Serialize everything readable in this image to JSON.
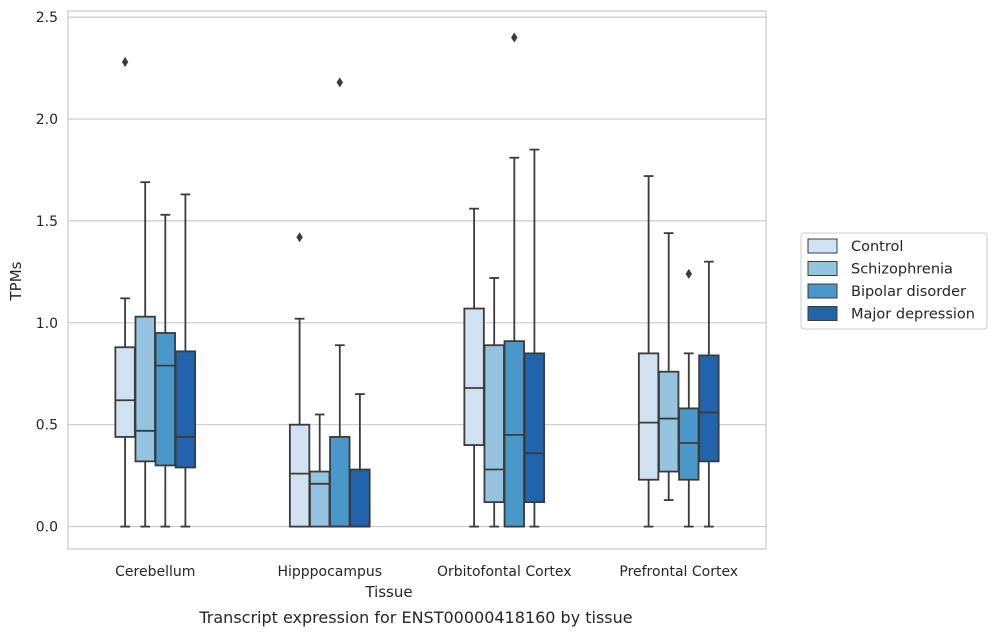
{
  "chart_data": {
    "type": "boxplot",
    "title": "",
    "caption": "Transcript expression for ENST00000418160 by tissue",
    "xlabel": "Tissue",
    "ylabel": "TPMs",
    "ylim": [
      -0.11,
      2.53
    ],
    "yticks": [
      "0.0",
      "0.5",
      "1.0",
      "1.5",
      "2.0",
      "2.5"
    ],
    "grid": "horizontal",
    "legend_position": "right",
    "categories": [
      "Cerebellum",
      "Hipppocampus",
      "Orbitofontal Cortex",
      "Prefrontal Cortex"
    ],
    "series": [
      {
        "name": "Control",
        "color": "#d0e1f2",
        "boxes": [
          {
            "whisker_low": 0.0,
            "q1": 0.44,
            "median": 0.62,
            "q3": 0.88,
            "whisker_high": 1.12,
            "outliers": [
              2.28
            ]
          },
          {
            "whisker_low": 0.0,
            "q1": 0.0,
            "median": 0.26,
            "q3": 0.5,
            "whisker_high": 1.02,
            "outliers": [
              1.42
            ]
          },
          {
            "whisker_low": 0.0,
            "q1": 0.4,
            "median": 0.68,
            "q3": 1.07,
            "whisker_high": 1.56,
            "outliers": []
          },
          {
            "whisker_low": 0.0,
            "q1": 0.23,
            "median": 0.51,
            "q3": 0.85,
            "whisker_high": 1.72,
            "outliers": []
          }
        ]
      },
      {
        "name": "Schizophrenia",
        "color": "#94c4df",
        "boxes": [
          {
            "whisker_low": 0.0,
            "q1": 0.32,
            "median": 0.47,
            "q3": 1.03,
            "whisker_high": 1.69,
            "outliers": []
          },
          {
            "whisker_low": 0.0,
            "q1": 0.0,
            "median": 0.21,
            "q3": 0.27,
            "whisker_high": 0.55,
            "outliers": []
          },
          {
            "whisker_low": 0.0,
            "q1": 0.12,
            "median": 0.28,
            "q3": 0.89,
            "whisker_high": 1.22,
            "outliers": []
          },
          {
            "whisker_low": 0.13,
            "q1": 0.27,
            "median": 0.53,
            "q3": 0.76,
            "whisker_high": 1.44,
            "outliers": []
          }
        ]
      },
      {
        "name": "Bipolar disorder",
        "color": "#4a98c9",
        "boxes": [
          {
            "whisker_low": 0.0,
            "q1": 0.3,
            "median": 0.79,
            "q3": 0.95,
            "whisker_high": 1.53,
            "outliers": []
          },
          {
            "whisker_low": 0.0,
            "q1": 0.0,
            "median": 0.0,
            "q3": 0.44,
            "whisker_high": 0.89,
            "outliers": [
              2.18
            ]
          },
          {
            "whisker_low": 0.0,
            "q1": 0.0,
            "median": 0.45,
            "q3": 0.91,
            "whisker_high": 1.81,
            "outliers": [
              2.4
            ]
          },
          {
            "whisker_low": 0.0,
            "q1": 0.23,
            "median": 0.41,
            "q3": 0.58,
            "whisker_high": 0.85,
            "outliers": [
              1.24
            ]
          }
        ]
      },
      {
        "name": "Major depression",
        "color": "#2164ab",
        "boxes": [
          {
            "whisker_low": 0.0,
            "q1": 0.29,
            "median": 0.44,
            "q3": 0.86,
            "whisker_high": 1.63,
            "outliers": []
          },
          {
            "whisker_low": 0.0,
            "q1": 0.0,
            "median": 0.0,
            "q3": 0.28,
            "whisker_high": 0.65,
            "outliers": []
          },
          {
            "whisker_low": 0.0,
            "q1": 0.12,
            "median": 0.36,
            "q3": 0.85,
            "whisker_high": 1.85,
            "outliers": []
          },
          {
            "whisker_low": 0.0,
            "q1": 0.32,
            "median": 0.56,
            "q3": 0.84,
            "whisker_high": 1.3,
            "outliers": []
          }
        ]
      }
    ]
  }
}
